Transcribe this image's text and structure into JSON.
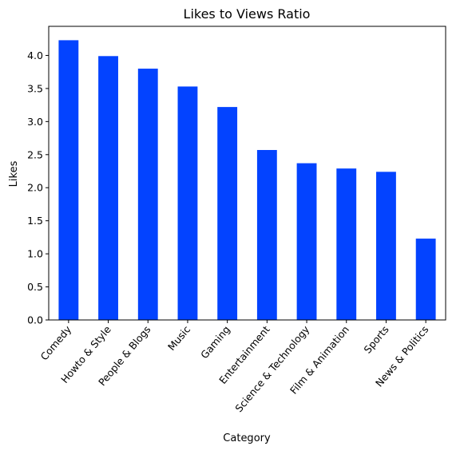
{
  "chart_data": {
    "type": "bar",
    "title": "Likes to Views Ratio",
    "xlabel": "Category",
    "ylabel": "Likes",
    "categories": [
      "Comedy",
      "Howto & Style",
      "People & Blogs",
      "Music",
      "Gaming",
      "Entertainment",
      "Science & Technology",
      "Film & Animation",
      "Sports",
      "News & Politics"
    ],
    "values": [
      4.23,
      3.99,
      3.8,
      3.53,
      3.22,
      2.57,
      2.37,
      2.29,
      2.24,
      1.23
    ],
    "ylim": [
      0,
      4.44
    ],
    "yticks": [
      0.0,
      0.5,
      1.0,
      1.5,
      2.0,
      2.5,
      3.0,
      3.5,
      4.0
    ],
    "ytick_labels": [
      "0.0",
      "0.5",
      "1.0",
      "1.5",
      "2.0",
      "2.5",
      "3.0",
      "3.5",
      "4.0"
    ],
    "bar_color": "#0343ff",
    "grid": false,
    "legend": "none",
    "xtick_rotation_deg": 50
  }
}
